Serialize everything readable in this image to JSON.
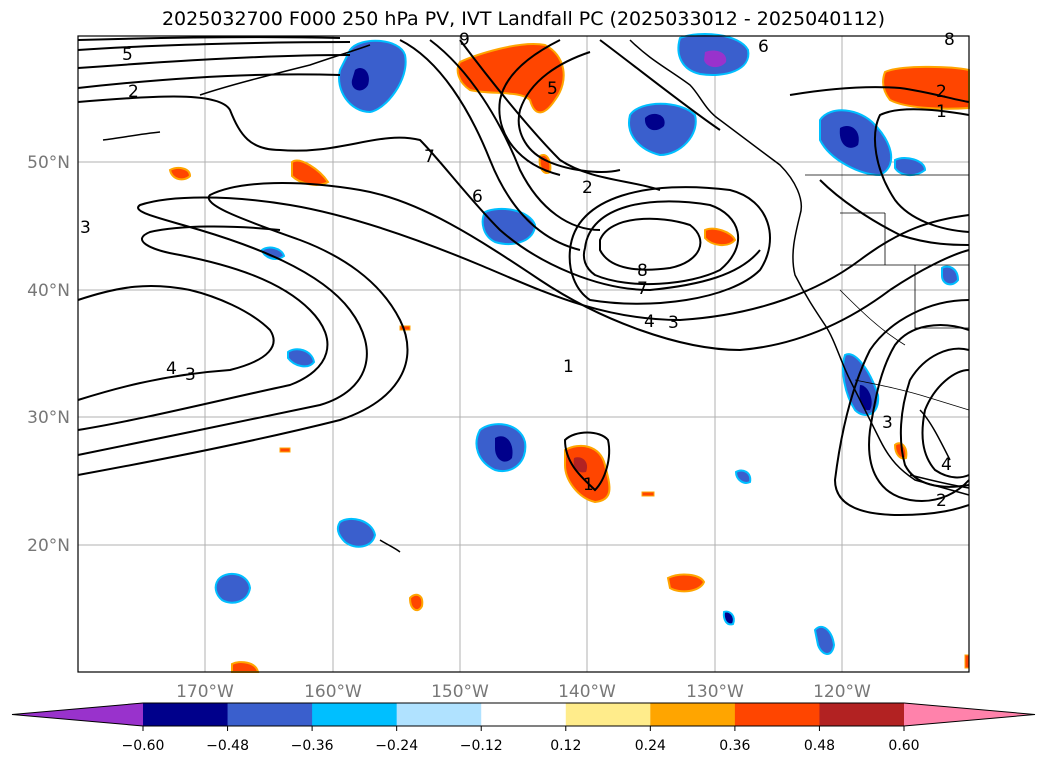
{
  "title": "2025032700 F000 250 hPa PV, IVT Landfall PC (2025033012 - 2025040112)",
  "map": {
    "lon_labels": [
      "170°W",
      "160°W",
      "150°W",
      "140°W",
      "130°W",
      "120°W"
    ],
    "lat_labels": [
      "50°N",
      "40°N",
      "30°N",
      "20°N"
    ],
    "contour_labels": [
      "5",
      "2",
      "7",
      "9",
      "5",
      "6",
      "2",
      "8",
      "7",
      "4",
      "3",
      "1",
      "6",
      "2",
      "1",
      "4",
      "3",
      "3",
      "1",
      "4",
      "2",
      "3",
      "8"
    ]
  },
  "colorbar": {
    "ticks": [
      "−0.60",
      "−0.48",
      "−0.36",
      "−0.24",
      "−0.12",
      "0.12",
      "0.24",
      "0.36",
      "0.48",
      "0.60"
    ],
    "colors": [
      "#9932CC",
      "#00008B",
      "#3A5FCD",
      "#00BFFF",
      "#B0E2FF",
      "#FFFFFF",
      "#FFEC8B",
      "#FFA500",
      "#FF4500",
      "#B22222",
      "#FF82AB"
    ]
  }
}
